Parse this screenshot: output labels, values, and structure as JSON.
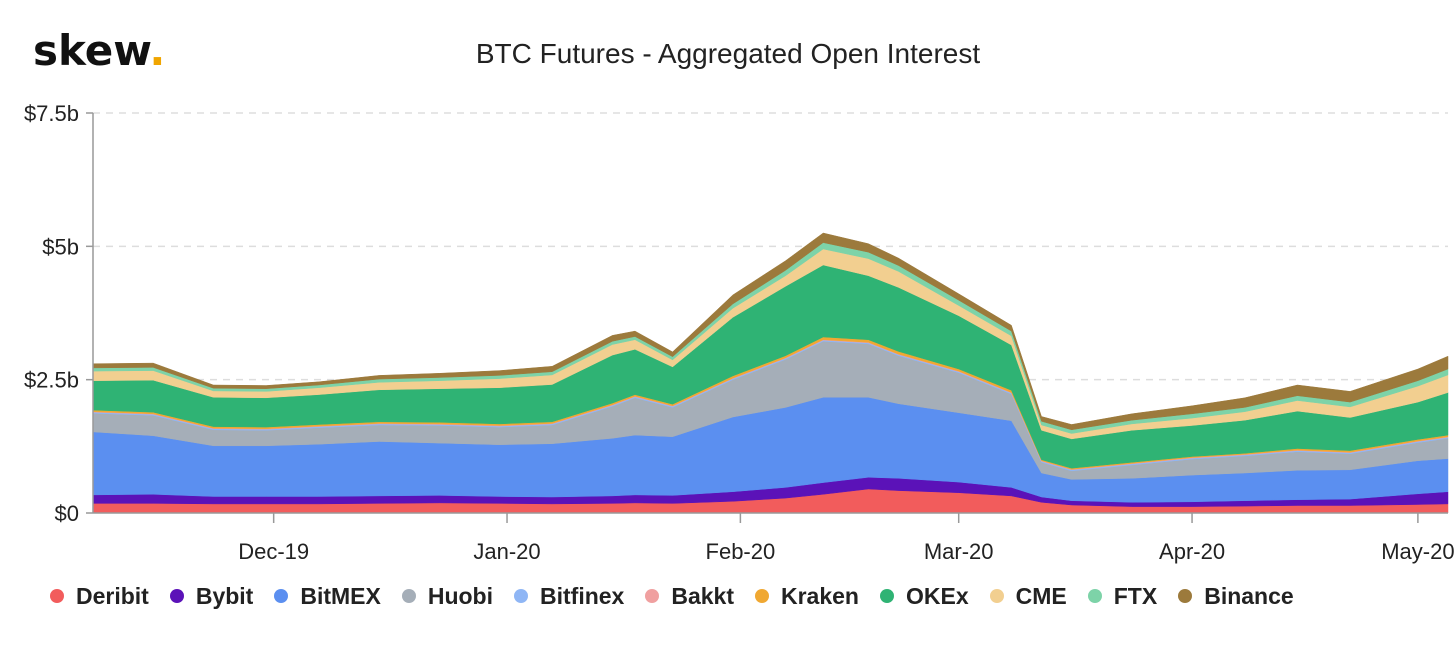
{
  "logo": {
    "text": "skew",
    "dot": "."
  },
  "chart_data": {
    "type": "area",
    "stacked": true,
    "title": "BTC Futures - Aggregated Open Interest",
    "xlabel": "",
    "ylabel": "",
    "x_start": "2019-11-07",
    "x_end": "2020-05-05",
    "ylim": [
      0,
      7.5
    ],
    "y_ticks": [
      {
        "value": 0,
        "label": "$0"
      },
      {
        "value": 2.5,
        "label": "$2.5b"
      },
      {
        "value": 5,
        "label": "$5b"
      },
      {
        "value": 7.5,
        "label": "$7.5b"
      }
    ],
    "x_ticks": [
      {
        "date": "2019-12-01",
        "label": "Dec-19"
      },
      {
        "date": "2020-01-01",
        "label": "Jan-20"
      },
      {
        "date": "2020-02-01",
        "label": "Feb-20"
      },
      {
        "date": "2020-03-01",
        "label": "Mar-20"
      },
      {
        "date": "2020-04-01",
        "label": "Apr-20"
      },
      {
        "date": "2020-05-01",
        "label": "May-20"
      }
    ],
    "grid": {
      "horizontal": true,
      "vertical": false
    },
    "legend_position": "bottom",
    "x": [
      "2019-11-07",
      "2019-11-15",
      "2019-11-23",
      "2019-11-30",
      "2019-12-07",
      "2019-12-15",
      "2019-12-23",
      "2019-12-31",
      "2020-01-07",
      "2020-01-15",
      "2020-01-18",
      "2020-01-23",
      "2020-01-31",
      "2020-02-07",
      "2020-02-12",
      "2020-02-18",
      "2020-02-22",
      "2020-03-01",
      "2020-03-08",
      "2020-03-12",
      "2020-03-16",
      "2020-03-24",
      "2020-04-01",
      "2020-04-08",
      "2020-04-15",
      "2020-04-22",
      "2020-05-01",
      "2020-05-05"
    ],
    "series": [
      {
        "name": "Deribit",
        "color": "#f25c5c",
        "values": [
          0.18,
          0.18,
          0.17,
          0.17,
          0.17,
          0.18,
          0.19,
          0.18,
          0.17,
          0.18,
          0.19,
          0.18,
          0.22,
          0.28,
          0.35,
          0.45,
          0.42,
          0.38,
          0.32,
          0.2,
          0.15,
          0.12,
          0.12,
          0.13,
          0.14,
          0.14,
          0.16,
          0.17
        ]
      },
      {
        "name": "Bybit",
        "color": "#5b12b8",
        "values": [
          0.16,
          0.17,
          0.14,
          0.14,
          0.14,
          0.14,
          0.14,
          0.13,
          0.13,
          0.14,
          0.15,
          0.15,
          0.18,
          0.2,
          0.22,
          0.22,
          0.23,
          0.2,
          0.16,
          0.1,
          0.08,
          0.08,
          0.09,
          0.1,
          0.11,
          0.12,
          0.2,
          0.23
        ]
      },
      {
        "name": "BitMEX",
        "color": "#5b8ff0",
        "values": [
          1.18,
          1.1,
          0.95,
          0.95,
          0.98,
          1.02,
          0.98,
          0.97,
          1.0,
          1.08,
          1.12,
          1.1,
          1.4,
          1.5,
          1.6,
          1.5,
          1.4,
          1.3,
          1.25,
          0.45,
          0.4,
          0.45,
          0.5,
          0.52,
          0.55,
          0.55,
          0.62,
          0.62
        ]
      },
      {
        "name": "Huobi",
        "color": "#a5aeb8",
        "values": [
          0.35,
          0.38,
          0.3,
          0.29,
          0.31,
          0.31,
          0.33,
          0.33,
          0.35,
          0.6,
          0.7,
          0.55,
          0.7,
          0.9,
          1.05,
          1.0,
          0.9,
          0.75,
          0.5,
          0.2,
          0.16,
          0.25,
          0.3,
          0.32,
          0.35,
          0.3,
          0.34,
          0.38
        ]
      },
      {
        "name": "Bitfinex",
        "color": "#8fb6f5",
        "values": [
          0.02,
          0.02,
          0.02,
          0.02,
          0.02,
          0.02,
          0.02,
          0.02,
          0.02,
          0.02,
          0.02,
          0.02,
          0.02,
          0.02,
          0.02,
          0.02,
          0.02,
          0.02,
          0.02,
          0.02,
          0.02,
          0.02,
          0.02,
          0.02,
          0.02,
          0.02,
          0.02,
          0.02
        ]
      },
      {
        "name": "Bakkt",
        "color": "#f0a0a0",
        "values": [
          0.01,
          0.01,
          0.01,
          0.01,
          0.01,
          0.01,
          0.01,
          0.01,
          0.01,
          0.01,
          0.01,
          0.01,
          0.01,
          0.01,
          0.01,
          0.01,
          0.01,
          0.01,
          0.01,
          0.01,
          0.01,
          0.01,
          0.01,
          0.01,
          0.01,
          0.01,
          0.01,
          0.01
        ]
      },
      {
        "name": "Kraken",
        "color": "#f0a832",
        "values": [
          0.03,
          0.03,
          0.03,
          0.03,
          0.03,
          0.03,
          0.03,
          0.03,
          0.03,
          0.03,
          0.03,
          0.03,
          0.04,
          0.04,
          0.05,
          0.05,
          0.05,
          0.04,
          0.04,
          0.02,
          0.02,
          0.02,
          0.02,
          0.02,
          0.03,
          0.03,
          0.03,
          0.03
        ]
      },
      {
        "name": "OKEx",
        "color": "#2fb374",
        "values": [
          0.55,
          0.6,
          0.55,
          0.55,
          0.56,
          0.6,
          0.63,
          0.68,
          0.7,
          0.9,
          0.85,
          0.7,
          1.1,
          1.3,
          1.35,
          1.2,
          1.2,
          1.0,
          0.85,
          0.55,
          0.55,
          0.6,
          0.58,
          0.62,
          0.7,
          0.62,
          0.7,
          0.8
        ]
      },
      {
        "name": "CME",
        "color": "#f2cf90",
        "values": [
          0.18,
          0.18,
          0.12,
          0.12,
          0.13,
          0.14,
          0.15,
          0.17,
          0.18,
          0.2,
          0.18,
          0.13,
          0.17,
          0.2,
          0.3,
          0.32,
          0.3,
          0.19,
          0.17,
          0.1,
          0.1,
          0.12,
          0.14,
          0.16,
          0.2,
          0.2,
          0.3,
          0.33
        ]
      },
      {
        "name": "FTX",
        "color": "#7dd3a8",
        "values": [
          0.06,
          0.06,
          0.05,
          0.05,
          0.05,
          0.06,
          0.06,
          0.06,
          0.06,
          0.06,
          0.06,
          0.06,
          0.08,
          0.1,
          0.12,
          0.12,
          0.11,
          0.1,
          0.09,
          0.07,
          0.07,
          0.07,
          0.08,
          0.08,
          0.09,
          0.09,
          0.1,
          0.11
        ]
      },
      {
        "name": "Binance",
        "color": "#9c7a3c",
        "values": [
          0.08,
          0.08,
          0.06,
          0.06,
          0.06,
          0.07,
          0.08,
          0.09,
          0.1,
          0.11,
          0.1,
          0.09,
          0.17,
          0.18,
          0.18,
          0.16,
          0.14,
          0.12,
          0.11,
          0.09,
          0.1,
          0.12,
          0.15,
          0.18,
          0.2,
          0.2,
          0.22,
          0.24
        ]
      }
    ]
  }
}
